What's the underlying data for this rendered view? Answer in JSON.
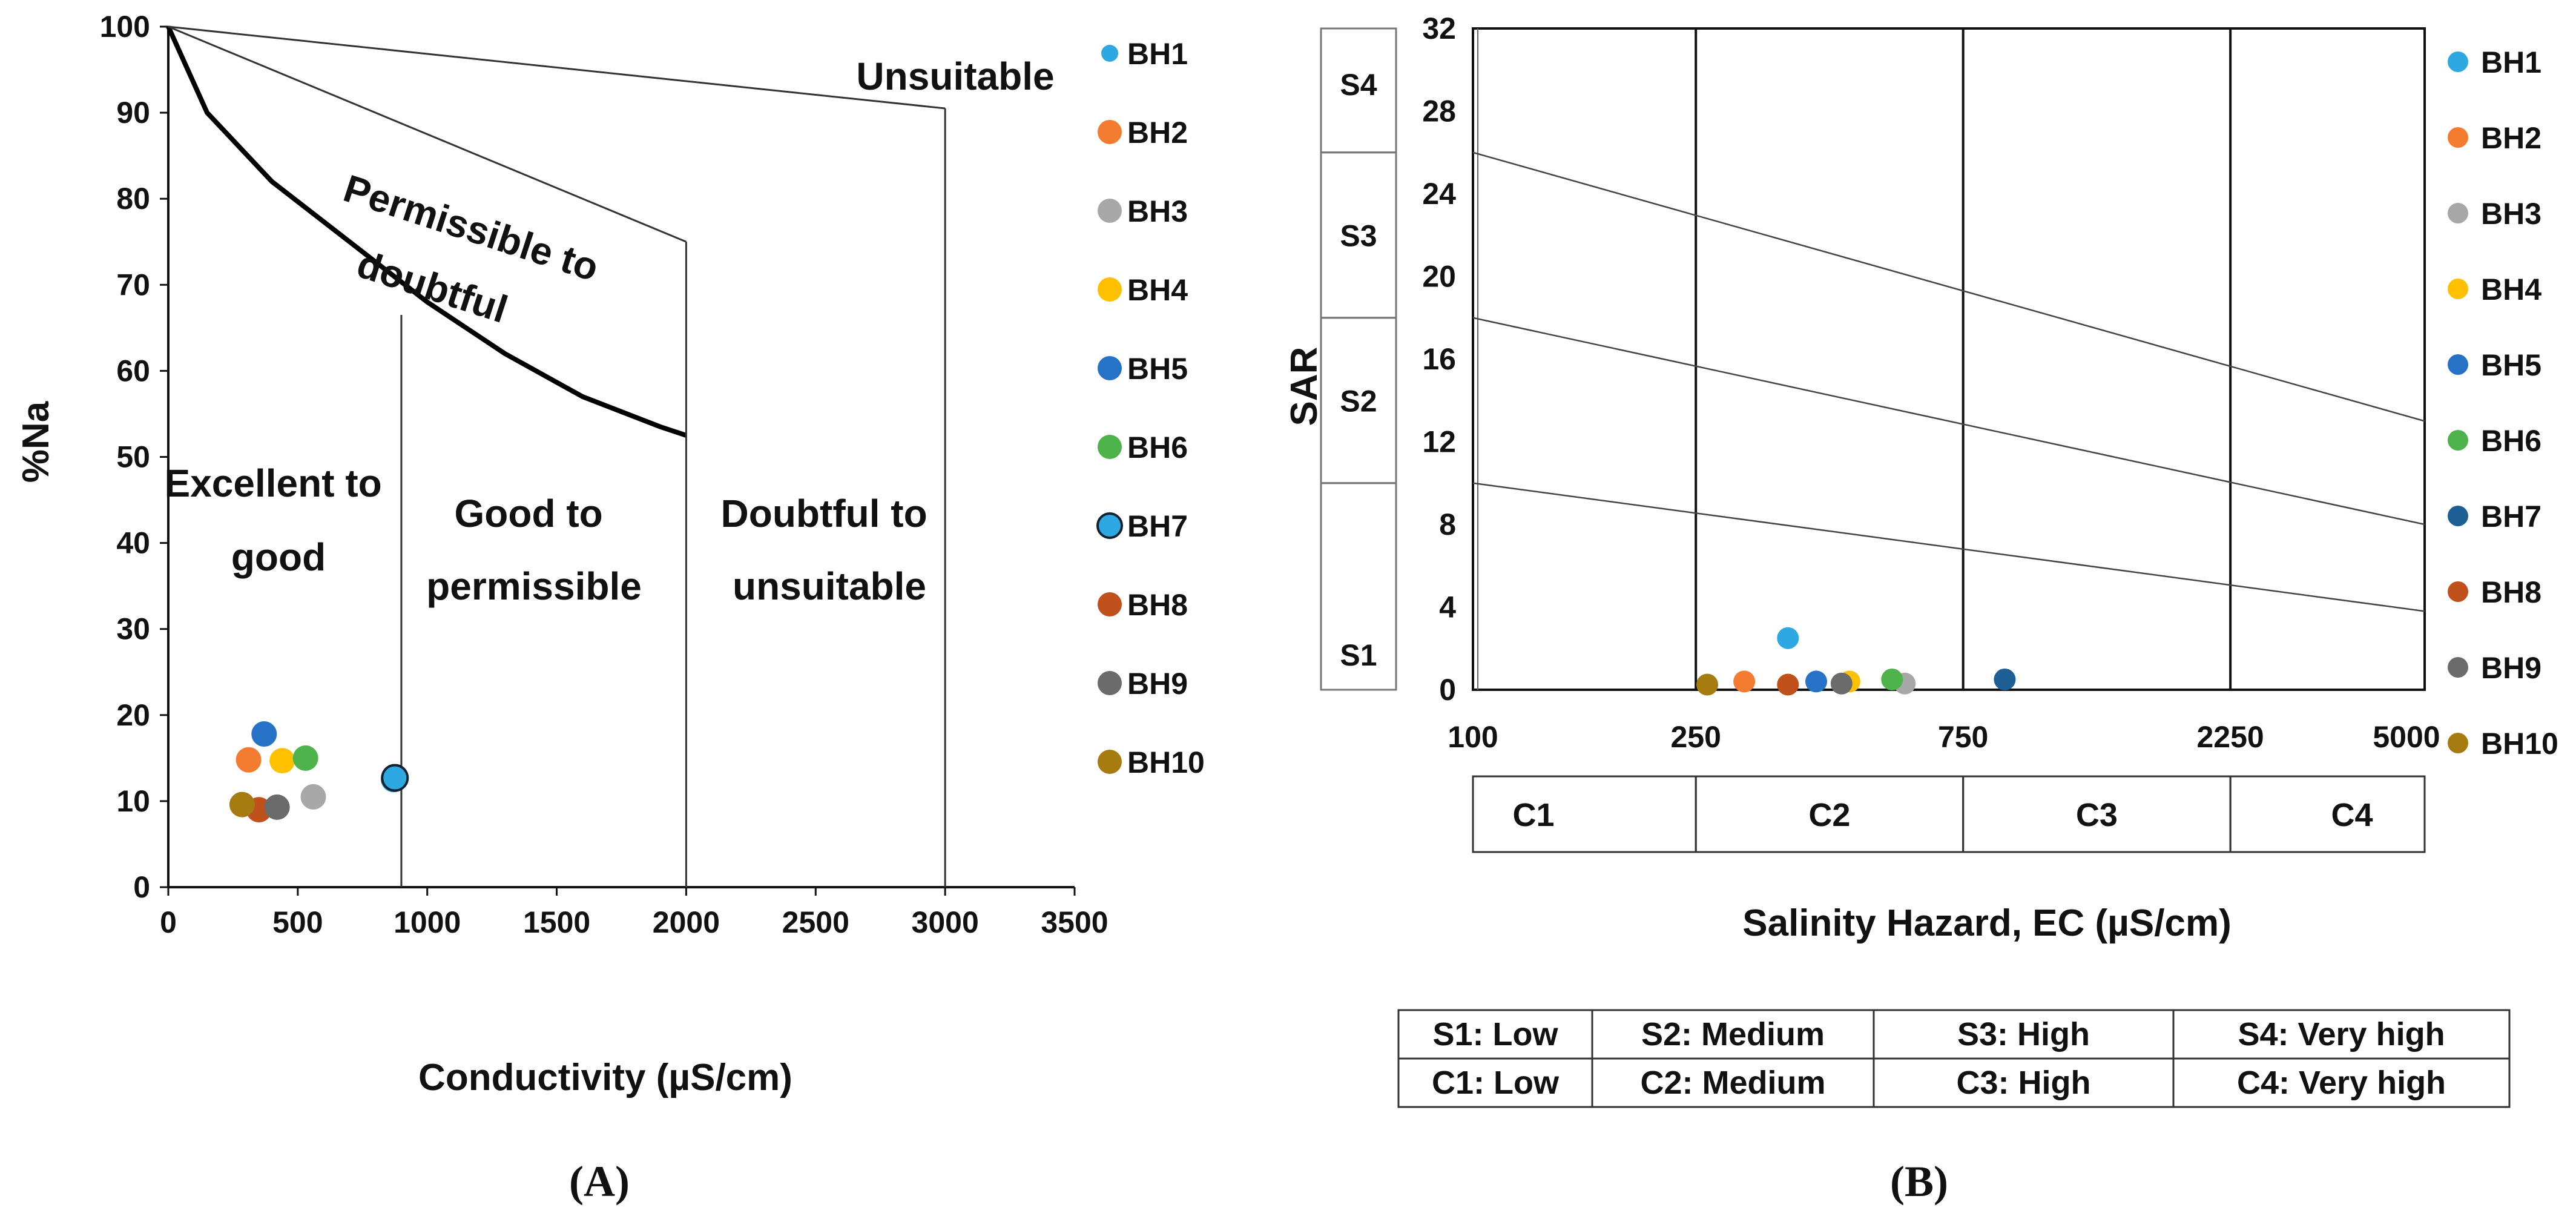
{
  "chart_data": [
    {
      "type": "scatter",
      "panel_label": "(A)",
      "xlabel": "Conductivity (µS/cm)",
      "ylabel": "%Na",
      "xlim": [
        0,
        3500
      ],
      "ylim": [
        0,
        100
      ],
      "xticks": [
        0,
        500,
        1000,
        1500,
        2000,
        2500,
        3000,
        3500
      ],
      "yticks": [
        0,
        10,
        20,
        30,
        40,
        50,
        60,
        70,
        80,
        90,
        100
      ],
      "zones": [
        {
          "text_lines": [
            "Excellent to",
            "good"
          ]
        },
        {
          "text_lines": [
            "Good to",
            "permissible"
          ]
        },
        {
          "text_lines": [
            "Doubtful to",
            "unsuitable"
          ]
        },
        {
          "text_lines": [
            "Permissible to",
            "doubtful"
          ]
        },
        {
          "text_lines": [
            "Unsuitable"
          ]
        }
      ],
      "boundaries": {
        "curve": [
          [
            0,
            100
          ],
          [
            150,
            90
          ],
          [
            400,
            82
          ],
          [
            700,
            75
          ],
          [
            1000,
            68
          ],
          [
            1300,
            62
          ],
          [
            1600,
            57
          ],
          [
            1900,
            53.5
          ],
          [
            2000,
            52.5
          ]
        ],
        "upper_line": [
          [
            0,
            100
          ],
          [
            2000,
            75
          ]
        ],
        "top_line": [
          [
            0,
            100
          ],
          [
            3000,
            90.5
          ]
        ],
        "vlines": [
          {
            "x": 900,
            "y_top": 66.5
          },
          {
            "x": 2000,
            "y_top": 75
          },
          {
            "x": 3000,
            "y_top": 90.5
          }
        ]
      },
      "series": [
        {
          "name": "BH1",
          "color": "#2EA8E0",
          "x": 870,
          "y": 12.5
        },
        {
          "name": "BH2",
          "color": "#F47C30",
          "x": 310,
          "y": 14.8
        },
        {
          "name": "BH3",
          "color": "#A8A8A8",
          "x": 560,
          "y": 10.5
        },
        {
          "name": "BH4",
          "color": "#FFC000",
          "x": 440,
          "y": 14.7
        },
        {
          "name": "BH5",
          "color": "#2672C6",
          "x": 370,
          "y": 17.8
        },
        {
          "name": "BH6",
          "color": "#4EB34A",
          "x": 530,
          "y": 15.0
        },
        {
          "name": "BH7",
          "color": "#2EA8E0",
          "x": 875,
          "y": 12.7
        },
        {
          "name": "BH8",
          "color": "#C0501C",
          "x": 350,
          "y": 9.0
        },
        {
          "name": "BH9",
          "color": "#6B6B6B",
          "x": 420,
          "y": 9.3
        },
        {
          "name": "BH10",
          "color": "#A67C10",
          "x": 285,
          "y": 9.6
        }
      ]
    },
    {
      "type": "scatter",
      "panel_label": "(B)",
      "xlabel": "Salinity Hazard, EC (µS/cm)",
      "ylabel": "SAR",
      "xscale": "log",
      "xlim": [
        100,
        5000
      ],
      "ylim": [
        0,
        32
      ],
      "xticks": [
        100,
        250,
        750,
        2250,
        5000
      ],
      "yticks": [
        0,
        4,
        8,
        12,
        16,
        20,
        24,
        28,
        32
      ],
      "s_classes": [
        "S1",
        "S2",
        "S3",
        "S4"
      ],
      "c_classes": [
        "C1",
        "C2",
        "C3",
        "C4"
      ],
      "s_class_bounds_sar": [
        0,
        10,
        18,
        26,
        32
      ],
      "class_vlines_ec": [
        250,
        750,
        2250
      ],
      "divider_lines": [
        {
          "from": [
            100,
            26
          ],
          "to": [
            5000,
            13
          ]
        },
        {
          "from": [
            100,
            18
          ],
          "to": [
            5000,
            8
          ]
        },
        {
          "from": [
            100,
            10
          ],
          "to": [
            5000,
            3.8
          ]
        }
      ],
      "series": [
        {
          "name": "BH1",
          "color": "#2EA8E0",
          "x": 365,
          "y": 2.5
        },
        {
          "name": "BH2",
          "color": "#F47C30",
          "x": 305,
          "y": 0.4
        },
        {
          "name": "BH3",
          "color": "#A8A8A8",
          "x": 590,
          "y": 0.3
        },
        {
          "name": "BH4",
          "color": "#FFC000",
          "x": 470,
          "y": 0.4
        },
        {
          "name": "BH5",
          "color": "#2672C6",
          "x": 410,
          "y": 0.4
        },
        {
          "name": "BH6",
          "color": "#4EB34A",
          "x": 560,
          "y": 0.5
        },
        {
          "name": "BH7",
          "color": "#1E5F96",
          "x": 890,
          "y": 0.5
        },
        {
          "name": "BH8",
          "color": "#C0501C",
          "x": 365,
          "y": 0.25
        },
        {
          "name": "BH9",
          "color": "#6B6B6B",
          "x": 455,
          "y": 0.3
        },
        {
          "name": "BH10",
          "color": "#A67C10",
          "x": 262,
          "y": 0.25
        }
      ],
      "class_table": [
        [
          "S1: Low",
          "S2: Medium",
          "S3: High",
          "S4: Very high"
        ],
        [
          "C1: Low",
          "C2: Medium",
          "C3: High",
          "C4: Very high"
        ]
      ]
    }
  ]
}
